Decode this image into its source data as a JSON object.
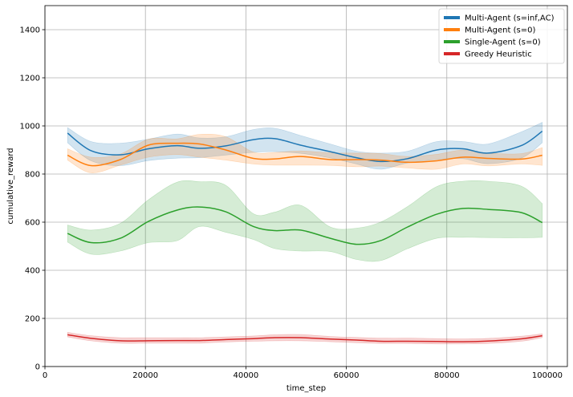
{
  "chart_data": {
    "type": "line",
    "xlabel": "time_step",
    "ylabel": "cumulative_reward",
    "xlim": [
      0,
      104000
    ],
    "ylim": [
      0,
      1500
    ],
    "xticks": [
      0,
      20000,
      40000,
      60000,
      80000,
      100000
    ],
    "yticks": [
      0,
      200,
      400,
      600,
      800,
      1000,
      1200,
      1400
    ],
    "grid": true,
    "legend_position": "top-right",
    "x": [
      4500,
      9200,
      15000,
      20600,
      26300,
      30800,
      36000,
      41500,
      45800,
      50900,
      56800,
      62000,
      66800,
      72200,
      78000,
      83200,
      88200,
      94800,
      99000
    ],
    "series": [
      {
        "name": "Multi-Agent (s=inf,AC)",
        "color": "#1f77b4",
        "mean": [
          970,
          897,
          880,
          905,
          918,
          907,
          917,
          943,
          947,
          920,
          893,
          868,
          852,
          864,
          900,
          905,
          887,
          918,
          978
        ],
        "lower": [
          930,
          855,
          835,
          856,
          866,
          868,
          879,
          890,
          893,
          886,
          867,
          842,
          820,
          846,
          860,
          864,
          843,
          866,
          930
        ],
        "upper": [
          993,
          935,
          928,
          945,
          966,
          950,
          955,
          985,
          990,
          960,
          925,
          895,
          887,
          895,
          935,
          935,
          925,
          975,
          1015
        ]
      },
      {
        "name": "Multi-Agent (s=0)",
        "color": "#ff7f0e",
        "mean": [
          878,
          835,
          860,
          920,
          928,
          925,
          900,
          865,
          863,
          873,
          860,
          860,
          858,
          849,
          855,
          870,
          865,
          862,
          878
        ],
        "lower": [
          858,
          805,
          837,
          870,
          881,
          870,
          858,
          842,
          837,
          837,
          836,
          830,
          833,
          825,
          820,
          842,
          834,
          842,
          836
        ],
        "upper": [
          905,
          870,
          883,
          945,
          946,
          965,
          955,
          891,
          890,
          896,
          888,
          887,
          885,
          873,
          882,
          900,
          887,
          885,
          910
        ]
      },
      {
        "name": "Single-Agent (s=0)",
        "color": "#2ca02c",
        "mean": [
          553,
          515,
          533,
          603,
          650,
          663,
          643,
          582,
          565,
          567,
          533,
          508,
          523,
          580,
          633,
          657,
          653,
          640,
          598
        ],
        "lower": [
          517,
          467,
          480,
          515,
          523,
          582,
          558,
          528,
          490,
          480,
          478,
          445,
          440,
          490,
          533,
          537,
          536,
          535,
          537
        ],
        "upper": [
          588,
          567,
          595,
          693,
          766,
          768,
          753,
          635,
          642,
          670,
          580,
          575,
          600,
          665,
          748,
          770,
          770,
          750,
          677
        ]
      },
      {
        "name": "Greedy Heuristic",
        "color": "#d62728",
        "mean": [
          132,
          117,
          107,
          107,
          108,
          108,
          112,
          116,
          120,
          120,
          114,
          110,
          105,
          105,
          104,
          103,
          106,
          115,
          128
        ],
        "lower": [
          123,
          107,
          97,
          97,
          97,
          97,
          102,
          105,
          107,
          107,
          103,
          99,
          96,
          96,
          94,
          94,
          96,
          105,
          120
        ],
        "upper": [
          142,
          128,
          120,
          120,
          120,
          120,
          123,
          127,
          132,
          133,
          125,
          121,
          118,
          118,
          116,
          115,
          117,
          126,
          136
        ]
      }
    ]
  }
}
